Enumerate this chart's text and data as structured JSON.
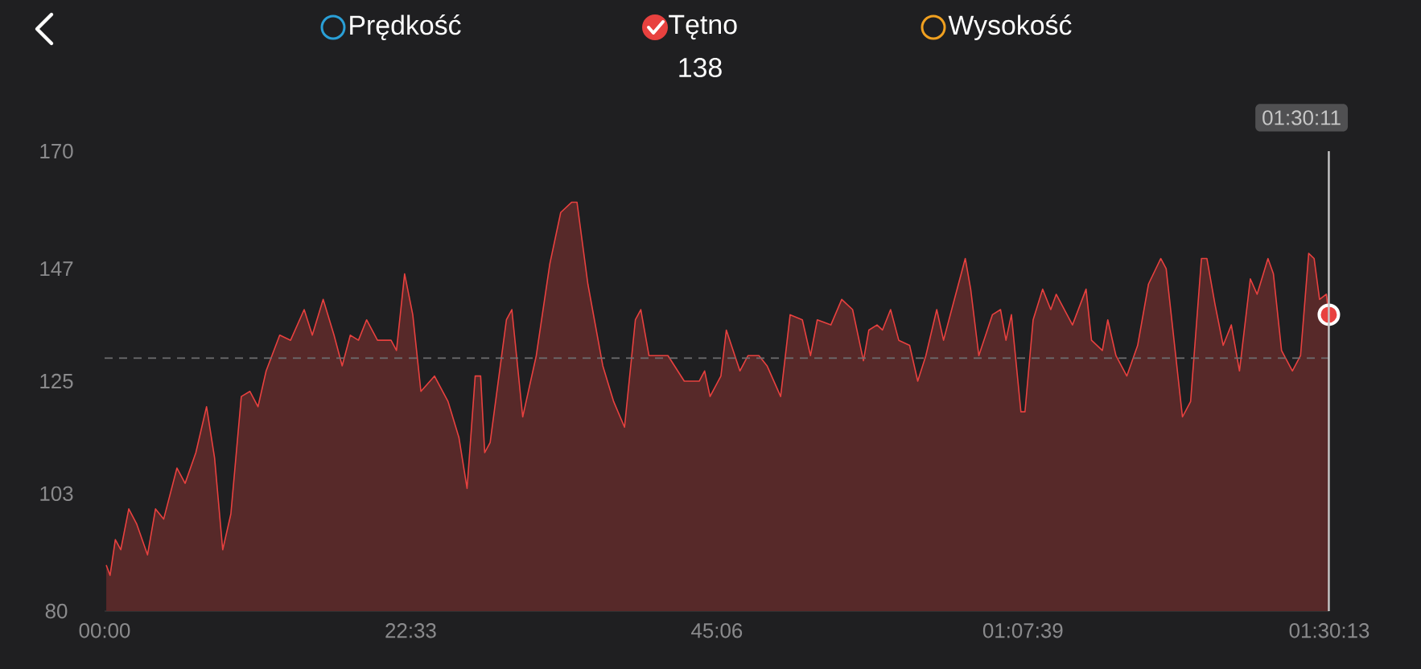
{
  "chart_data": {
    "type": "area",
    "legend": "top",
    "series": [
      {
        "name": "Tętno",
        "color": "#e8413f",
        "x": [
          0.12,
          0.4,
          0.79,
          1.19,
          1.78,
          2.37,
          3.16,
          3.75,
          4.35,
          5.33,
          5.93,
          6.72,
          7.51,
          8.1,
          8.7,
          9.3,
          10.07,
          10.7,
          11.3,
          11.9,
          12.9,
          13.7,
          14.7,
          15.3,
          16.1,
          16.9,
          17.5,
          18.1,
          18.7,
          19.3,
          20.1,
          21.1,
          21.5,
          22.1,
          22.7,
          23.3,
          24.3,
          25.3,
          26.1,
          26.7,
          27.3,
          27.7,
          28.0,
          28.4,
          29.2,
          29.6,
          30.0,
          30.8,
          31.8,
          32.8,
          33.6,
          34.4,
          34.8,
          35.6,
          36.7,
          37.5,
          38.3,
          39.1,
          39.5,
          40.1,
          41.5,
          42.7,
          43.8,
          44.2,
          44.6,
          45.4,
          45.8,
          46.8,
          47.4,
          48.2,
          48.8,
          49.8,
          50.5,
          51.4,
          52.0,
          52.5,
          53.5,
          54.3,
          55.1,
          55.9,
          56.3,
          56.9,
          57.3,
          57.9,
          58.5,
          59.3,
          59.9,
          60.5,
          61.3,
          61.8,
          62.4,
          63.4,
          63.8,
          64.4,
          65.4,
          66.0,
          66.4,
          66.8,
          67.5,
          67.8,
          68.4,
          69.1,
          69.7,
          70.1,
          71.3,
          72.3,
          72.7,
          73.5,
          73.9,
          74.5,
          75.3,
          76.1,
          76.9,
          77.8,
          78.2,
          79.4,
          80.0,
          80.8,
          81.2,
          81.8,
          82.4,
          83.0,
          83.6,
          84.4,
          84.9,
          85.7,
          86.1,
          86.7,
          87.5,
          88.1,
          88.7,
          89.1,
          89.5,
          90.0,
          90.1833
        ],
        "values": [
          89,
          87,
          94,
          92,
          100,
          97,
          91,
          100,
          98,
          108,
          105,
          111,
          120,
          110,
          92,
          99,
          122,
          123,
          120,
          127,
          134,
          133,
          139,
          134,
          141,
          134,
          128,
          134,
          133,
          137,
          133,
          133,
          131,
          146,
          138,
          123,
          126,
          121,
          114,
          104,
          126,
          126,
          111,
          113,
          129,
          137,
          139,
          118,
          130,
          148,
          158,
          160,
          160,
          144,
          128,
          121,
          116,
          137,
          139,
          130,
          130,
          125,
          125,
          127,
          122,
          126,
          135,
          127,
          130,
          130,
          128,
          122,
          138,
          137,
          130,
          137,
          136,
          141,
          139,
          129,
          135,
          136,
          135,
          139,
          133,
          132,
          125,
          130,
          139,
          133,
          139,
          149,
          143,
          130,
          138,
          139,
          133,
          138,
          119,
          119,
          137,
          143,
          139,
          142,
          136,
          143,
          133,
          131,
          137,
          130,
          126,
          132,
          144,
          149,
          147,
          118,
          121,
          149,
          149,
          140,
          132,
          136,
          127,
          145,
          142,
          149,
          146,
          131,
          127,
          130,
          150,
          149,
          141,
          142,
          138
        ]
      }
    ],
    "xlim": [
      0,
      90.217
    ],
    "ylim": [
      80,
      170
    ],
    "xticks": [
      {
        "value": 0,
        "label": "00:00"
      },
      {
        "value": 22.55,
        "label": "22:33"
      },
      {
        "value": 45.1,
        "label": "45:06"
      },
      {
        "value": 67.65,
        "label": "01:07:39"
      },
      {
        "value": 90.217,
        "label": "01:30:13"
      }
    ],
    "yticks": [
      80,
      103,
      125,
      147,
      170
    ],
    "ref_lines": [
      {
        "axis": "y",
        "value": 129.5,
        "color": "#6e6e70",
        "line_style": "dashed"
      },
      {
        "axis": "x",
        "value": 90.1833,
        "color": "#c8c8c8",
        "line_style": "solid"
      }
    ],
    "annotations": [
      "Prędkość",
      "Wysokość",
      "138",
      "01:30:11"
    ]
  }
}
